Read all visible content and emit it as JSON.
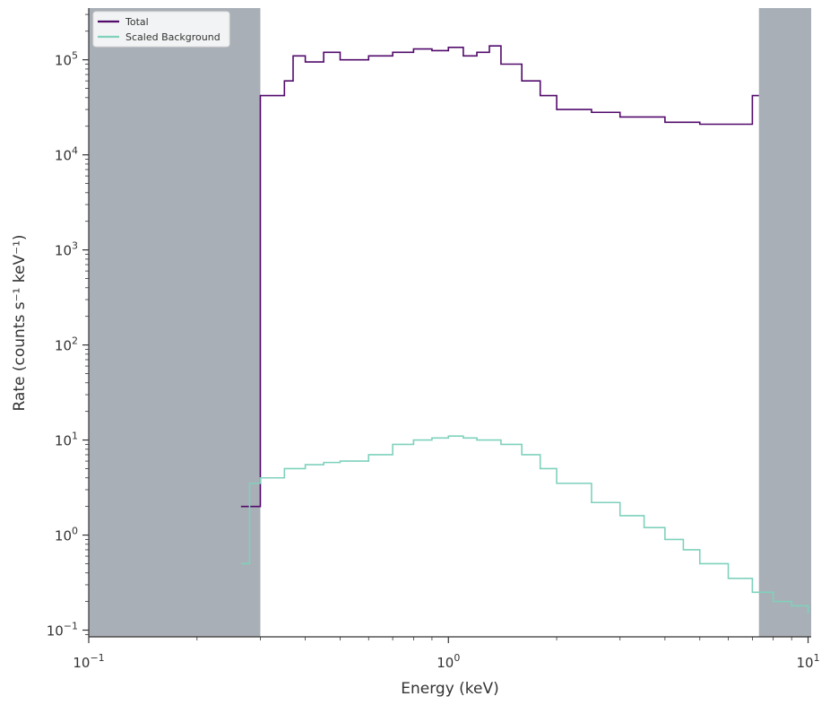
{
  "chart_data": {
    "type": "line",
    "drawstyle": "steps",
    "xlabel": "Energy (keV)",
    "ylabel": "Rate (counts s⁻¹ keV⁻¹)",
    "xscale": "log",
    "yscale": "log",
    "xlim": [
      0.1,
      10.2
    ],
    "ylim": [
      0.085,
      350000
    ],
    "x_ticks": [
      {
        "value": 0.1,
        "base": "10",
        "exp": "−1"
      },
      {
        "value": 1,
        "base": "10",
        "exp": "0"
      },
      {
        "value": 10,
        "base": "10",
        "exp": "1"
      }
    ],
    "y_ticks": [
      {
        "value": 0.1,
        "base": "10",
        "exp": "−1"
      },
      {
        "value": 1,
        "base": "10",
        "exp": "0"
      },
      {
        "value": 10,
        "base": "10",
        "exp": "1"
      },
      {
        "value": 100,
        "base": "10",
        "exp": "2"
      },
      {
        "value": 1000,
        "base": "10",
        "exp": "3"
      },
      {
        "value": 10000,
        "base": "10",
        "exp": "4"
      },
      {
        "value": 100000,
        "base": "10",
        "exp": "5"
      }
    ],
    "ignored_ranges": [
      [
        0.1,
        0.3
      ],
      [
        7.3,
        10.2
      ]
    ],
    "ignored_color": "#a9afb6",
    "grid": false,
    "legend_position": "top-left",
    "series": [
      {
        "name": "Total",
        "color": "#520a6b",
        "x": [
          0.265,
          0.3,
          0.35,
          0.37,
          0.4,
          0.45,
          0.5,
          0.6,
          0.7,
          0.8,
          0.9,
          1.0,
          1.1,
          1.2,
          1.3,
          1.4,
          1.6,
          1.8,
          2.0,
          2.5,
          3.0,
          4.0,
          5.0,
          6.0,
          7.0,
          7.3
        ],
        "y": [
          2,
          42000,
          60000,
          110000,
          95000,
          120000,
          100000,
          110000,
          120000,
          130000,
          125000,
          135000,
          110000,
          120000,
          140000,
          90000,
          60000,
          42000,
          30000,
          28000,
          25000,
          22000,
          21000,
          21000,
          42000,
          42000
        ]
      },
      {
        "name": "Scaled  Background",
        "color": "#7fd1bc",
        "x": [
          0.265,
          0.28,
          0.3,
          0.35,
          0.4,
          0.45,
          0.5,
          0.6,
          0.7,
          0.8,
          0.9,
          1.0,
          1.1,
          1.2,
          1.4,
          1.6,
          1.8,
          2.0,
          2.5,
          3.0,
          3.5,
          4.0,
          4.5,
          5.0,
          6.0,
          7.0,
          8.0,
          9.0,
          10.0
        ],
        "y": [
          0.5,
          3.5,
          4.0,
          5.0,
          5.5,
          5.8,
          6.0,
          7.0,
          9.0,
          10.0,
          10.5,
          11.0,
          10.5,
          10.0,
          9.0,
          7.0,
          5.0,
          3.5,
          2.2,
          1.6,
          1.2,
          0.9,
          0.7,
          0.5,
          0.35,
          0.25,
          0.2,
          0.18,
          0.15
        ]
      }
    ]
  }
}
